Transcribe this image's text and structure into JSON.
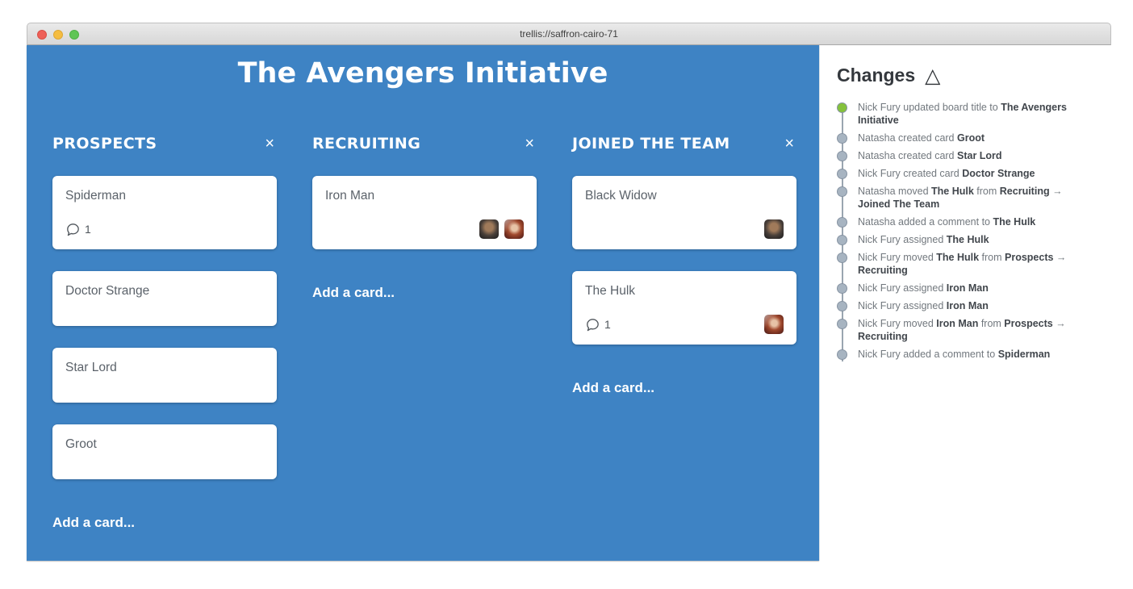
{
  "window": {
    "title": "trellis://saffron-cairo-71"
  },
  "board": {
    "title": "The Avengers Initiative",
    "add_card_label": "Add a card...",
    "close_label": "×",
    "columns": [
      {
        "name": "PROSPECTS",
        "cards": [
          {
            "title": "Spiderman",
            "comments": 1,
            "avatars": []
          },
          {
            "title": "Doctor Strange"
          },
          {
            "title": "Star Lord"
          },
          {
            "title": "Groot"
          }
        ]
      },
      {
        "name": "RECRUITING",
        "cards": [
          {
            "title": "Iron Man",
            "avatars": [
              "nick-fury",
              "natasha"
            ]
          }
        ]
      },
      {
        "name": "JOINED THE TEAM",
        "cards": [
          {
            "title": "Black Widow",
            "avatars": [
              "nick-fury"
            ]
          },
          {
            "title": "The Hulk",
            "comments": 1,
            "avatars": [
              "natasha"
            ]
          }
        ]
      }
    ]
  },
  "avatars": {
    "nick-fury": {
      "label": "Nick Fury"
    },
    "natasha": {
      "label": "Natasha"
    }
  },
  "changes": {
    "title": "Changes",
    "delta_icon": "△",
    "items": [
      {
        "color": "green",
        "segments": [
          {
            "t": "Nick Fury updated board title to ",
            "b": false
          },
          {
            "t": "The Avengers Initiative",
            "b": true
          }
        ]
      },
      {
        "color": "gray",
        "segments": [
          {
            "t": "Natasha created card ",
            "b": false
          },
          {
            "t": "Groot",
            "b": true
          }
        ]
      },
      {
        "color": "gray",
        "segments": [
          {
            "t": "Natasha created card ",
            "b": false
          },
          {
            "t": "Star Lord",
            "b": true
          }
        ]
      },
      {
        "color": "gray",
        "segments": [
          {
            "t": "Nick Fury created card ",
            "b": false
          },
          {
            "t": "Doctor Strange",
            "b": true
          }
        ]
      },
      {
        "color": "gray",
        "segments": [
          {
            "t": "Natasha moved ",
            "b": false
          },
          {
            "t": "The Hulk",
            "b": true
          },
          {
            "t": " from ",
            "b": false
          },
          {
            "t": "Recruiting",
            "b": true
          },
          {
            "t": " → ",
            "b": false
          },
          {
            "t": "Joined The Team",
            "b": true
          }
        ]
      },
      {
        "color": "gray",
        "segments": [
          {
            "t": "Natasha added a comment to ",
            "b": false
          },
          {
            "t": "The Hulk",
            "b": true
          }
        ]
      },
      {
        "color": "gray",
        "segments": [
          {
            "t": "Nick Fury assigned ",
            "b": false
          },
          {
            "t": "The Hulk",
            "b": true
          }
        ]
      },
      {
        "color": "gray",
        "segments": [
          {
            "t": "Nick Fury moved ",
            "b": false
          },
          {
            "t": "The Hulk",
            "b": true
          },
          {
            "t": " from ",
            "b": false
          },
          {
            "t": "Prospects",
            "b": true
          },
          {
            "t": " → ",
            "b": false
          },
          {
            "t": "Recruiting",
            "b": true
          }
        ]
      },
      {
        "color": "gray",
        "segments": [
          {
            "t": "Nick Fury assigned ",
            "b": false
          },
          {
            "t": "Iron Man",
            "b": true
          }
        ]
      },
      {
        "color": "gray",
        "segments": [
          {
            "t": "Nick Fury assigned ",
            "b": false
          },
          {
            "t": "Iron Man",
            "b": true
          }
        ]
      },
      {
        "color": "gray",
        "segments": [
          {
            "t": "Nick Fury moved ",
            "b": false
          },
          {
            "t": "Iron Man",
            "b": true
          },
          {
            "t": " from ",
            "b": false
          },
          {
            "t": "Prospects",
            "b": true
          },
          {
            "t": " → ",
            "b": false
          },
          {
            "t": "Recruiting",
            "b": true
          }
        ]
      },
      {
        "color": "gray",
        "segments": [
          {
            "t": "Nick Fury added a comment to ",
            "b": false
          },
          {
            "t": "Spiderman",
            "b": true
          }
        ]
      }
    ]
  },
  "colors": {
    "board_blue": "#3e83c4",
    "dot_green": "#85c23c",
    "dot_gray": "#a7b4c1",
    "timeline_line": "#9aa5b0"
  }
}
